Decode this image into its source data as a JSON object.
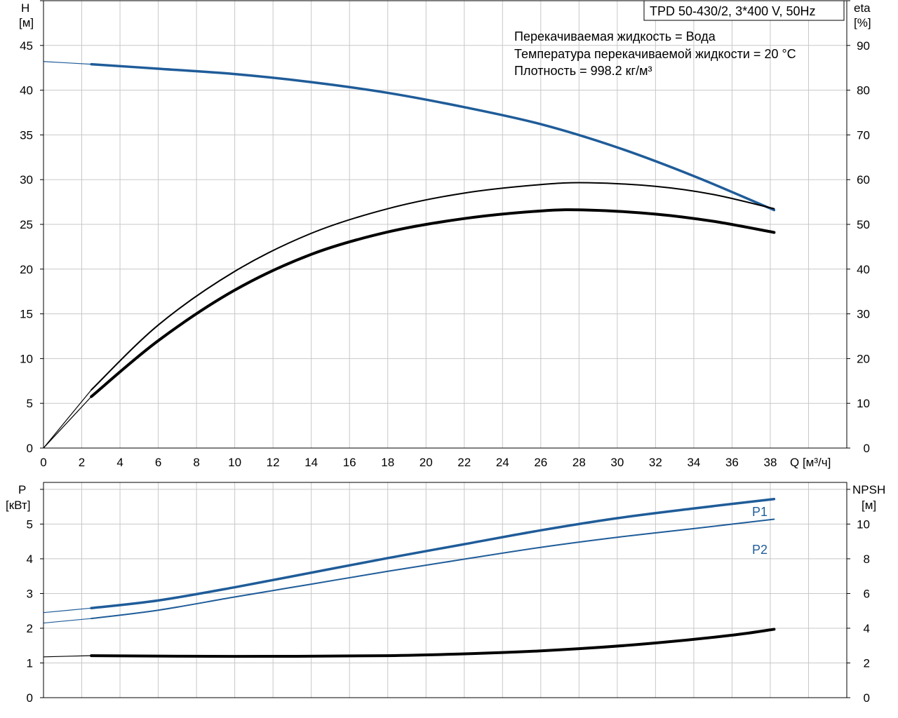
{
  "chart_data": [
    {
      "type": "line",
      "model_title": "TPD 50-430/2, 3*400 V, 50Hz",
      "annotations": [
        "Перекачиваемая жидкость = Вода",
        "Температура перекачиваемой жидкости = 20 °C",
        "Плотность = 998.2 кг/м³"
      ],
      "left_axis": {
        "label_line1": "H",
        "label_line2": "[м]",
        "range": [
          0,
          50
        ],
        "ticks": [
          "0",
          "5",
          "10",
          "15",
          "20",
          "25",
          "30",
          "35",
          "40",
          "45"
        ]
      },
      "right_axis": {
        "label_line1": "eta",
        "label_line2": "[%]",
        "range": [
          0,
          100
        ],
        "ticks": [
          "0",
          "10",
          "20",
          "30",
          "40",
          "50",
          "60",
          "70",
          "80",
          "90"
        ]
      },
      "x_axis": {
        "label": "Q [м³/ч]",
        "range": [
          0,
          42
        ],
        "ticks": [
          "0",
          "2",
          "4",
          "6",
          "8",
          "10",
          "12",
          "14",
          "16",
          "18",
          "20",
          "22",
          "24",
          "26",
          "28",
          "30",
          "32",
          "34",
          "36",
          "38"
        ]
      },
      "grid": true,
      "series": [
        {
          "axis": "left",
          "color": "#1f5c99",
          "x": [
            0,
            2.5,
            6,
            10,
            14,
            18,
            22,
            26,
            30,
            34,
            38.2
          ],
          "y": [
            43.2,
            42.9,
            42.4,
            41.8,
            40.9,
            39.7,
            38.1,
            36.2,
            33.6,
            30.4,
            26.6
          ]
        },
        {
          "axis": "right",
          "color": "#000000",
          "x": [
            0,
            2.5,
            6,
            10,
            14,
            18,
            22,
            26,
            28.5,
            32,
            35,
            38.2
          ],
          "y": [
            0,
            13,
            27.5,
            39.5,
            48,
            53.5,
            57,
            58.9,
            59.3,
            58.5,
            56.7,
            53.5
          ]
        },
        {
          "axis": "right",
          "color": "#000000",
          "x": [
            0,
            2.5,
            6,
            10,
            14,
            18,
            22,
            26,
            28.5,
            32,
            35,
            38.2
          ],
          "y": [
            0,
            11.5,
            24,
            35.3,
            43.3,
            48.3,
            51.3,
            53,
            53.2,
            52.3,
            50.7,
            48.2
          ]
        }
      ]
    },
    {
      "type": "line",
      "left_axis": {
        "label_line1": "P",
        "label_line2": "[кВт]",
        "range": [
          0,
          6.2
        ],
        "ticks": [
          "0",
          "1",
          "2",
          "3",
          "4",
          "5"
        ]
      },
      "right_axis": {
        "label_line1": "NPSH",
        "label_line2": "[м]",
        "range": [
          0,
          12.4
        ],
        "ticks": [
          "0",
          "2",
          "4",
          "6",
          "8",
          "10"
        ]
      },
      "x_axis": {
        "range": [
          0,
          42
        ]
      },
      "grid": true,
      "series": [
        {
          "name": "P1",
          "axis": "left",
          "color": "#1f5c99",
          "x": [
            0,
            2.5,
            6,
            10,
            14,
            18,
            22,
            26,
            30,
            34,
            38.2
          ],
          "y": [
            2.45,
            2.58,
            2.8,
            3.18,
            3.6,
            4.02,
            4.42,
            4.82,
            5.17,
            5.45,
            5.72
          ]
        },
        {
          "name": "P2",
          "axis": "left",
          "color": "#1f5c99",
          "x": [
            0,
            2.5,
            6,
            10,
            14,
            18,
            22,
            26,
            30,
            34,
            38.2
          ],
          "y": [
            2.15,
            2.28,
            2.52,
            2.9,
            3.27,
            3.64,
            3.99,
            4.33,
            4.62,
            4.87,
            5.14
          ]
        },
        {
          "axis": "right",
          "color": "#000000",
          "x": [
            0,
            2.5,
            10,
            18,
            24,
            28,
            32,
            36,
            38.2
          ],
          "y": [
            2.35,
            2.42,
            2.38,
            2.42,
            2.6,
            2.82,
            3.15,
            3.6,
            3.94
          ]
        }
      ]
    }
  ]
}
